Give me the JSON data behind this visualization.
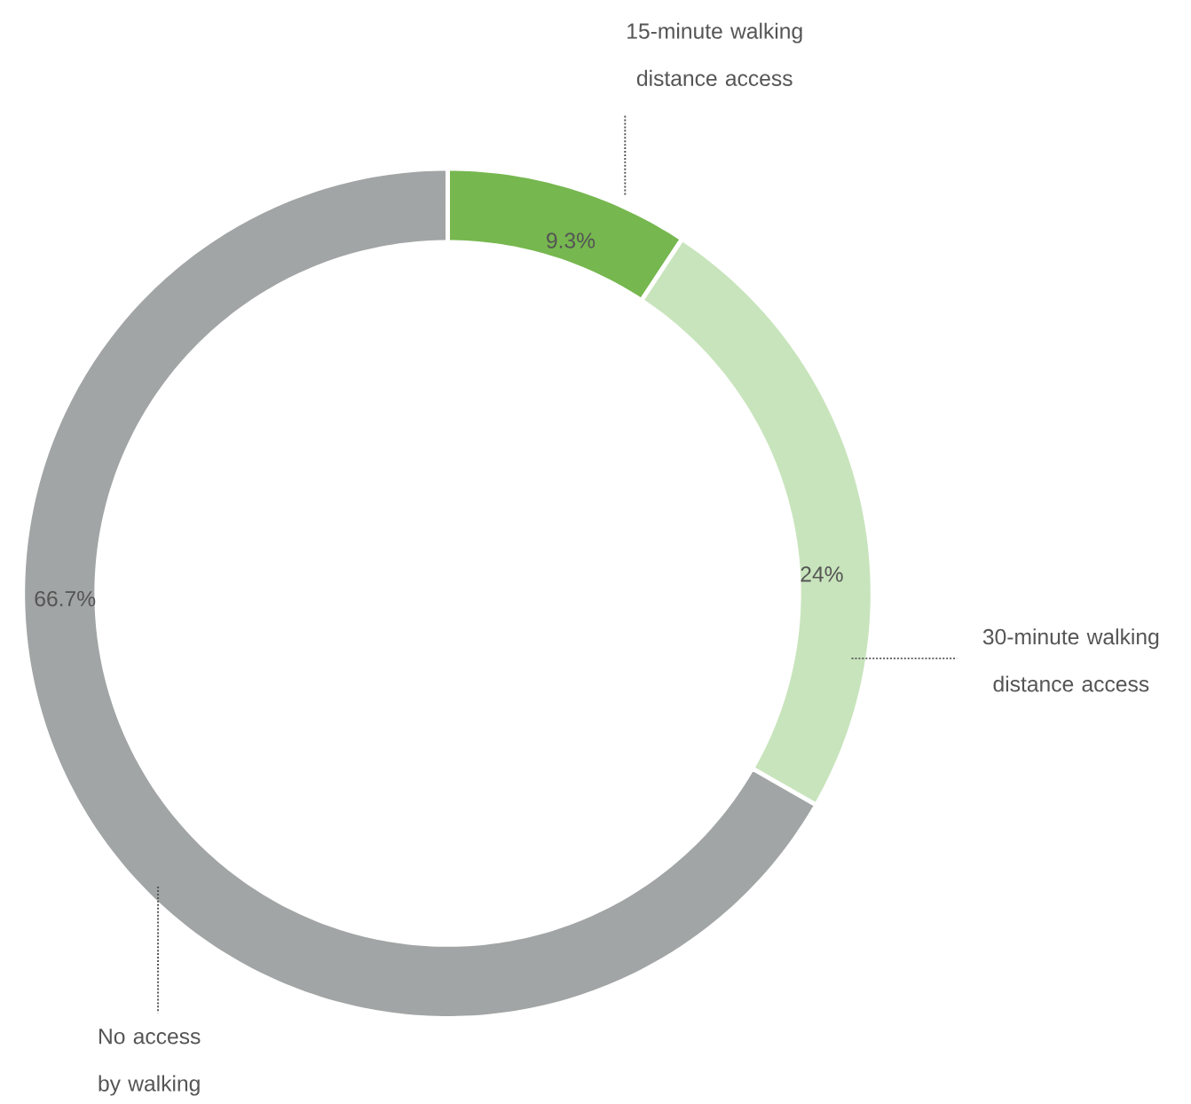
{
  "chart_data": {
    "type": "donut",
    "categories": [
      "15-minute walking distance access",
      "30-minute walking distance access",
      "No access by walking"
    ],
    "values": [
      9.3,
      24,
      66.7
    ],
    "colors": [
      "#76b74f",
      "#c8e4bc",
      "#a2a5a5"
    ],
    "value_labels": [
      "9.3%",
      "24%",
      "66.7%"
    ]
  }
}
